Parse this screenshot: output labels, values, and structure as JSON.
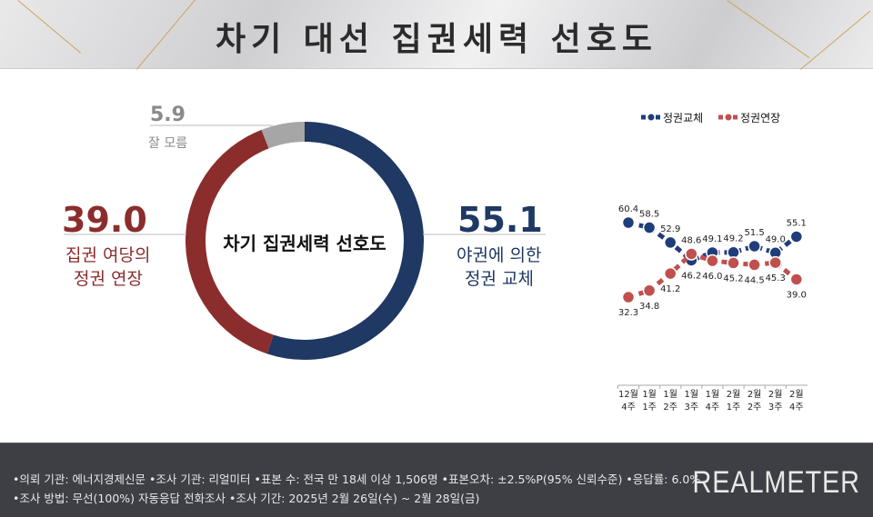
{
  "header": {
    "title": "차기 대선 집권세력 선호도"
  },
  "donut": {
    "center_label": "차기 집권세력 선호도",
    "slices": [
      {
        "label_lines": [
          "야권에 의한",
          "정권 교체"
        ],
        "value": "55.1",
        "color": "#1f3864"
      },
      {
        "label_lines": [
          "집권 여당의",
          "정권 연장"
        ],
        "value": "39.0",
        "color": "#8b2d2d"
      },
      {
        "label_lines": [
          "잘 모름"
        ],
        "value": "5.9",
        "color": "#a6a6a6"
      }
    ]
  },
  "chart_data": {
    "type": "line",
    "categories": [
      [
        "12월",
        "4주"
      ],
      [
        "1월",
        "1주"
      ],
      [
        "1월",
        "2주"
      ],
      [
        "1월",
        "3주"
      ],
      [
        "1월",
        "4주"
      ],
      [
        "2월",
        "1주"
      ],
      [
        "2월",
        "2주"
      ],
      [
        "2월",
        "3주"
      ],
      [
        "2월",
        "4주"
      ]
    ],
    "series": [
      {
        "name": "정권교체",
        "color": "#1f3d7a",
        "values": [
          60.4,
          58.5,
          52.9,
          46.2,
          49.1,
          49.2,
          51.5,
          49.0,
          55.1
        ]
      },
      {
        "name": "정권연장",
        "color": "#c0504d",
        "values": [
          32.3,
          34.8,
          41.2,
          48.6,
          46.0,
          45.2,
          44.5,
          45.3,
          39.0
        ]
      }
    ],
    "legend": "top"
  },
  "footer": {
    "line1": "•의뢰 기관: 에너지경제신문 •조사 기관: 리얼미터 •표본 수: 전국 만 18세 이상 1,506명 •표본오차: ±2.5%P(95% 신뢰수준) •응답률: 6.0%",
    "line2": "•조사 방법: 무선(100%) 자동응답 전화조사 •조사 기간: 2025년 2월 26일(수) ~ 2월 28일(금)",
    "logo": "REALMETER"
  }
}
